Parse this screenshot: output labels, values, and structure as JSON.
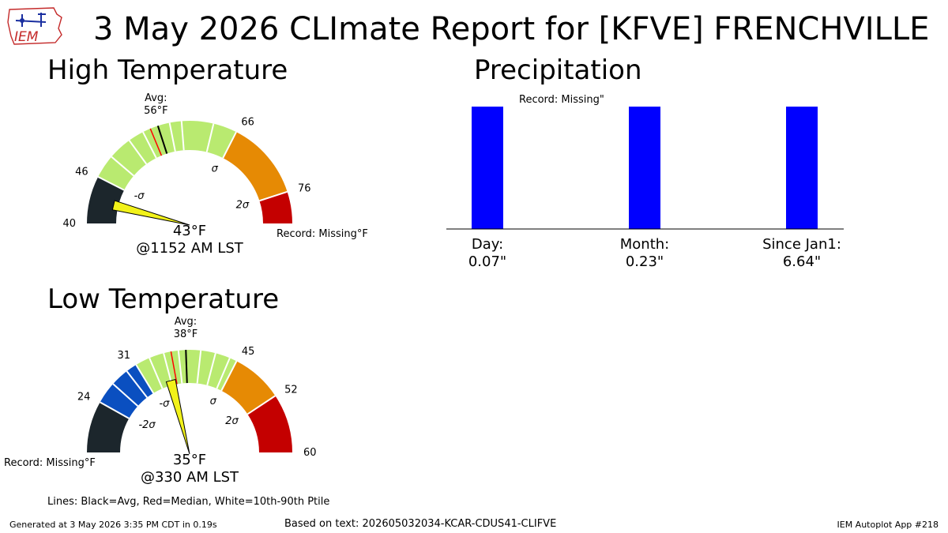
{
  "header": {
    "title": "3 May 2026 CLImate Report for [KFVE] FRENCHVILLE",
    "logo_text": "IEM"
  },
  "colors": {
    "below_2sigma": "#1c262c",
    "below_sigma": "#0a4fc0",
    "normal": "#b9ea70",
    "above_sigma": "#e68a04",
    "above_2sigma": "#c40000",
    "needle": "#f2f21a",
    "precip_bar": "#0000ff",
    "median_line": "#ff0000",
    "avg_line": "#000000"
  },
  "high": {
    "title": "High Temperature",
    "min": 40,
    "max": 80,
    "observed": 43,
    "observed_label": "43°F",
    "time_label": "@1152 AM LST",
    "avg": 56,
    "avg_label": "Avg:\n56°F",
    "median": 55,
    "record_label": "Record: Missing°F",
    "bands": [
      {
        "from": 40,
        "to": 46,
        "color": "below_2sigma"
      },
      {
        "from": 46,
        "to": 66,
        "color": "normal"
      },
      {
        "from": 66,
        "to": 76,
        "color": "above_sigma"
      },
      {
        "from": 76,
        "to": 80,
        "color": "above_2sigma"
      }
    ],
    "percentile_lines": [
      49,
      52,
      54,
      57.5,
      59,
      63
    ],
    "tick_labels": [
      {
        "value": 40,
        "text": "40"
      },
      {
        "value": 46,
        "text": "46"
      },
      {
        "value": 66,
        "text": "66"
      },
      {
        "value": 76,
        "text": "76"
      }
    ],
    "sigma_labels": [
      {
        "value": 46,
        "text": "-σ"
      },
      {
        "value": 66,
        "text": "σ"
      },
      {
        "value": 76,
        "text": "2σ"
      }
    ]
  },
  "low": {
    "title": "Low Temperature",
    "min": 17,
    "max": 60,
    "observed": 35,
    "observed_label": "35°F",
    "time_label": "@330 AM LST",
    "avg": 38,
    "avg_label": "Avg:\n38°F",
    "median": 36,
    "record_label": "Record: Missing°F",
    "bands": [
      {
        "from": 17,
        "to": 24,
        "color": "below_2sigma"
      },
      {
        "from": 24,
        "to": 31,
        "color": "below_sigma"
      },
      {
        "from": 31,
        "to": 45,
        "color": "normal"
      },
      {
        "from": 45,
        "to": 52,
        "color": "above_sigma"
      },
      {
        "from": 52,
        "to": 60,
        "color": "above_2sigma"
      }
    ],
    "percentile_lines": [
      27,
      29.5,
      33,
      35,
      37,
      40,
      42,
      44
    ],
    "tick_labels": [
      {
        "value": 24,
        "text": "24"
      },
      {
        "value": 31,
        "text": "31"
      },
      {
        "value": 45,
        "text": "45"
      },
      {
        "value": 52,
        "text": "52"
      },
      {
        "value": 60,
        "text": "60"
      }
    ],
    "sigma_labels": [
      {
        "value": 24,
        "text": "-2σ"
      },
      {
        "value": 31,
        "text": "-σ"
      },
      {
        "value": 45,
        "text": "σ"
      },
      {
        "value": 52,
        "text": "2σ"
      }
    ]
  },
  "chart_data": {
    "type": "bar",
    "title": "Precipitation",
    "categories": [
      "Day",
      "Month",
      "Since Jan1"
    ],
    "values": [
      0.07,
      0.23,
      6.64
    ],
    "category_labels": [
      "Day:\n0.07\"",
      "Month:\n0.23\"",
      "Since Jan1:\n6.64\""
    ],
    "annotation": "Record: Missing\"",
    "xlabel": "",
    "ylabel": "",
    "grid": false
  },
  "footer": {
    "legend_note": "Lines: Black=Avg, Red=Median, White=10th-90th Ptile",
    "generated": "Generated at 3 May 2026 3:35 PM CDT in 0.19s",
    "based_on": "Based on text: 202605032034-KCAR-CDUS41-CLIFVE",
    "app": "IEM Autoplot App #218"
  }
}
